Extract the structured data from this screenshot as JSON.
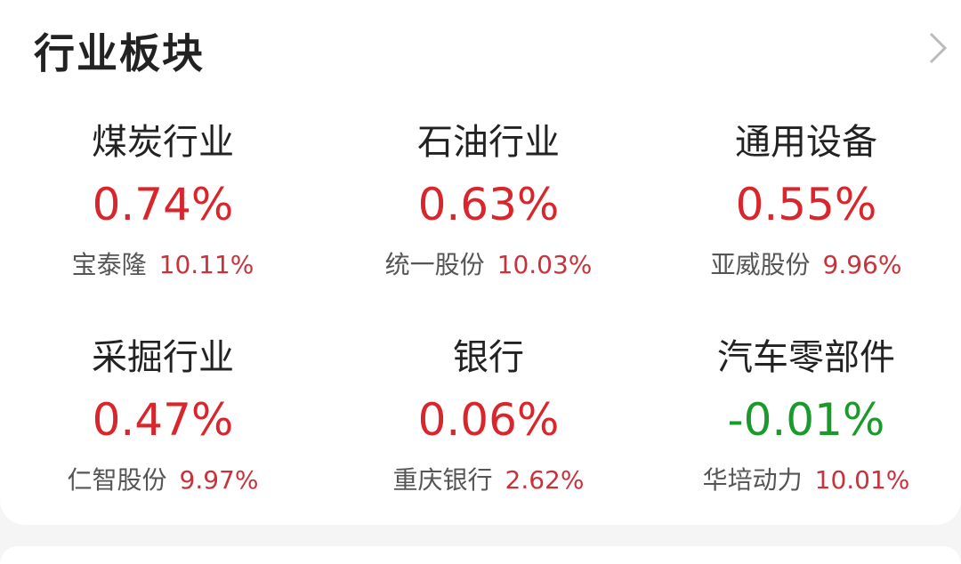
{
  "header": {
    "title": "行业板块",
    "more_icon": "chevron-right-icon"
  },
  "colors": {
    "up": "#d9262c",
    "down": "#1a9a2a"
  },
  "sectors": [
    {
      "name": "煤炭行业",
      "change": "0.74%",
      "trend": "up",
      "top_stock": "宝泰隆",
      "top_change": "10.11%"
    },
    {
      "name": "石油行业",
      "change": "0.63%",
      "trend": "up",
      "top_stock": "统一股份",
      "top_change": "10.03%"
    },
    {
      "name": "通用设备",
      "change": "0.55%",
      "trend": "up",
      "top_stock": "亚威股份",
      "top_change": "9.96%"
    },
    {
      "name": "采掘行业",
      "change": "0.47%",
      "trend": "up",
      "top_stock": "仁智股份",
      "top_change": "9.97%"
    },
    {
      "name": "银行",
      "change": "0.06%",
      "trend": "up",
      "top_stock": "重庆银行",
      "top_change": "2.62%"
    },
    {
      "name": "汽车零部件",
      "change": "-0.01%",
      "trend": "down",
      "top_stock": "华培动力",
      "top_change": "10.01%"
    }
  ]
}
